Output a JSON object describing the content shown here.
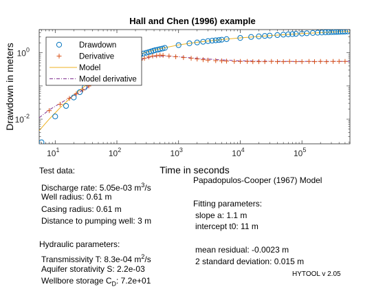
{
  "chart_data": {
    "type": "scatter",
    "title": "Hall and Chen (1996) example",
    "xlabel": "Time in seconds",
    "ylabel": "Drawdown in meters",
    "xscale": "log",
    "yscale": "log",
    "xlim": [
      5.5,
      600000
    ],
    "ylim": [
      0.0018,
      5
    ],
    "xticks": [
      10,
      100,
      1000,
      10000,
      100000
    ],
    "xtick_base": "10",
    "xtick_exps": [
      "1",
      "2",
      "3",
      "4",
      "5"
    ],
    "yticks": [
      0.01,
      1
    ],
    "ytick_base": "10",
    "ytick_exps": [
      "-2",
      "0"
    ],
    "grid": false,
    "legend_position": "top-left",
    "series": [
      {
        "name": "Drawdown",
        "marker": "circle",
        "color": "#0072bd",
        "x": [
          6,
          10,
          15,
          20,
          25,
          30,
          40,
          50,
          60,
          70,
          80,
          100,
          120,
          150,
          180,
          210,
          240,
          270,
          300,
          330,
          360,
          390,
          420,
          460,
          500,
          550,
          600,
          1000,
          1500,
          2000,
          2500,
          3000,
          3500,
          4000,
          4500,
          5000,
          6000,
          10000,
          15000,
          20000,
          25000,
          30000,
          40000,
          50000,
          60000,
          70000,
          80000,
          100000,
          120000,
          150000,
          180000,
          210000,
          240000,
          270000,
          300000,
          330000,
          360000,
          390000,
          420000,
          460000,
          500000,
          550000
        ],
        "y": [
          0.002,
          0.012,
          0.025,
          0.045,
          0.065,
          0.09,
          0.15,
          0.21,
          0.27,
          0.32,
          0.38,
          0.45,
          0.52,
          0.62,
          0.72,
          0.8,
          0.88,
          0.95,
          1.0,
          1.05,
          1.1,
          1.15,
          1.2,
          1.24,
          1.29,
          1.34,
          1.4,
          1.7,
          1.92,
          2.05,
          2.15,
          2.25,
          2.32,
          2.38,
          2.42,
          2.48,
          2.58,
          2.8,
          3.0,
          3.12,
          3.22,
          3.3,
          3.42,
          3.52,
          3.6,
          3.66,
          3.72,
          3.8,
          3.88,
          3.96,
          4.03,
          4.08,
          4.13,
          4.17,
          4.2,
          4.23,
          4.26,
          4.28,
          4.3,
          4.33,
          4.36,
          4.4
        ]
      },
      {
        "name": "Derivative",
        "marker": "plus",
        "color": "#d95319",
        "x": [
          8,
          12,
          17,
          22,
          28,
          35,
          45,
          55,
          70,
          90,
          110,
          140,
          170,
          200,
          240,
          280,
          330,
          380,
          440,
          500,
          560,
          700,
          900,
          1200,
          1600,
          2000,
          2500,
          3000,
          4000,
          5000,
          6000,
          8000,
          10000,
          13000,
          16000,
          20000,
          25000,
          32000,
          40000,
          50000,
          63000,
          80000,
          100000,
          130000,
          160000,
          200000,
          250000,
          320000,
          400000,
          500000
        ],
        "y": [
          0.018,
          0.028,
          0.042,
          0.058,
          0.076,
          0.1,
          0.13,
          0.16,
          0.2,
          0.25,
          0.3,
          0.37,
          0.44,
          0.52,
          0.6,
          0.68,
          0.75,
          0.8,
          0.82,
          0.85,
          0.84,
          0.8,
          0.76,
          0.72,
          0.68,
          0.65,
          0.62,
          0.6,
          0.58,
          0.57,
          0.56,
          0.55,
          0.55,
          0.55,
          0.54,
          0.54,
          0.54,
          0.55,
          0.54,
          0.54,
          0.55,
          0.54,
          0.54,
          0.55,
          0.54,
          0.55,
          0.54,
          0.55,
          0.55,
          0.55
        ]
      },
      {
        "name": "Model",
        "line": "solid",
        "color": "#edb120",
        "x": [
          5.5,
          8,
          12,
          18,
          25,
          35,
          50,
          70,
          100,
          140,
          200,
          280,
          400,
          600,
          1000,
          2000,
          5000,
          10000,
          30000,
          100000,
          300000,
          600000
        ],
        "y": [
          0.0045,
          0.01,
          0.022,
          0.045,
          0.075,
          0.12,
          0.2,
          0.3,
          0.45,
          0.62,
          0.82,
          1.0,
          1.2,
          1.42,
          1.72,
          2.08,
          2.5,
          2.82,
          3.28,
          3.8,
          4.22,
          4.45
        ]
      },
      {
        "name": "Model derivative",
        "line": "dashdot",
        "color": "#7e2f8e",
        "x": [
          5.5,
          8,
          12,
          18,
          25,
          35,
          50,
          70,
          100,
          140,
          200,
          280,
          400,
          600,
          1000,
          2000,
          5000,
          10000,
          50000,
          200000,
          600000
        ],
        "y": [
          0.011,
          0.019,
          0.03,
          0.046,
          0.066,
          0.095,
          0.135,
          0.19,
          0.27,
          0.38,
          0.52,
          0.68,
          0.78,
          0.8,
          0.76,
          0.68,
          0.61,
          0.57,
          0.55,
          0.55,
          0.55
        ]
      }
    ]
  },
  "panel": {
    "test_data_header": "Test data:",
    "discharge_rate": "Discharge rate: 5.05e-03 m",
    "discharge_rate_exp": "3",
    "discharge_rate_unit": "/s",
    "well_radius": "Well radius: 0.61 m",
    "casing_radius": "Casing radius: 0.61 m",
    "distance": "Distance to pumping well: 3 m",
    "hydraulic_header": "Hydraulic parameters:",
    "transmissivity": "Transmissivity T: 8.3e-04 m",
    "transmissivity_exp": "2",
    "transmissivity_unit": "/s",
    "storativity": "Aquifer storativity S: 2.2e-03",
    "wellbore_prefix": "Wellbore storage C",
    "wellbore_sub": "D",
    "wellbore_value": ": 7.2e+01",
    "model_name": "Papadopulos-Cooper (1967) Model",
    "fitting_header": "Fitting parameters:",
    "slope": "slope a: 1.1 m",
    "intercept": "intercept t0: 11 m",
    "mean_residual": "mean residual: -0.0023 m",
    "std_dev": "2 standard deviation: 0.015 m",
    "version": "HYTOOL v 2.05"
  }
}
